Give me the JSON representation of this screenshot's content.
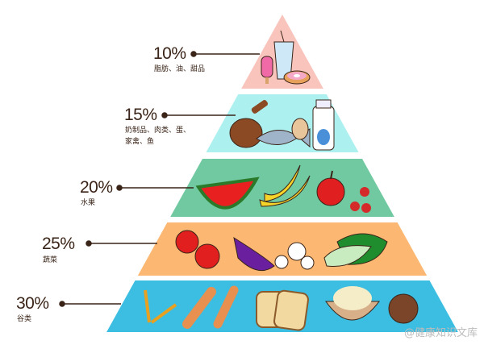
{
  "pyramid": {
    "levels": [
      {
        "percent": "10%",
        "label": "脂肪、油、甜品",
        "color": "#f9c4bc"
      },
      {
        "percent": "15%",
        "label": "奶制品、肉类、蛋、",
        "label2": "家禽、鱼",
        "color": "#adf0f0"
      },
      {
        "percent": "20%",
        "label": "水果",
        "color": "#70c9a0"
      },
      {
        "percent": "25%",
        "label": "蔬菜",
        "color": "#fcb872"
      },
      {
        "percent": "30%",
        "label": "谷类",
        "color": "#3bbee1"
      }
    ]
  },
  "watermark": "@健康知识文库"
}
